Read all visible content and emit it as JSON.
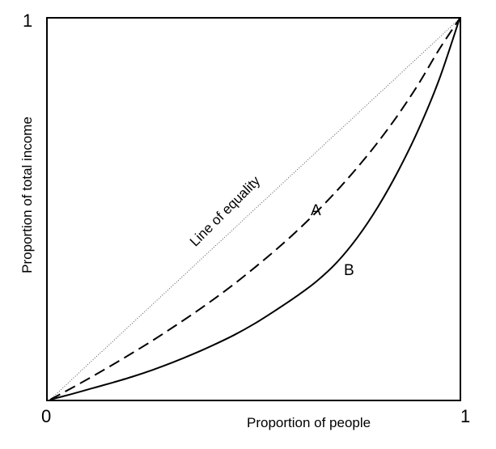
{
  "chart_data": {
    "type": "line",
    "title": "",
    "xlabel": "Proportion of people",
    "ylabel": "Proportion of total income",
    "xlim": [
      0,
      1
    ],
    "ylim": [
      0,
      1
    ],
    "x_ticks": [
      "0",
      "1"
    ],
    "y_ticks": [
      "1"
    ],
    "grid": false,
    "legend": "none",
    "annotations": [
      {
        "text": "Line of equality"
      }
    ],
    "series": [
      {
        "label": "",
        "style": "dotted",
        "color": "#555555",
        "x": [
          0,
          1
        ],
        "y": [
          0,
          1
        ]
      },
      {
        "label": "A",
        "style": "dashed",
        "color": "#000000",
        "x": [
          0,
          0.05,
          0.1,
          0.15,
          0.2,
          0.25,
          0.3,
          0.35,
          0.4,
          0.45,
          0.5,
          0.55,
          0.6,
          0.65,
          0.7,
          0.75,
          0.8,
          0.85,
          0.9,
          0.95,
          1
        ],
        "y": [
          0,
          0.029,
          0.059,
          0.09,
          0.122,
          0.155,
          0.19,
          0.226,
          0.264,
          0.304,
          0.347,
          0.392,
          0.44,
          0.492,
          0.548,
          0.609,
          0.675,
          0.748,
          0.829,
          0.919,
          1
        ]
      },
      {
        "label": "B",
        "style": "solid",
        "color": "#000000",
        "x": [
          0,
          0.05,
          0.1,
          0.15,
          0.2,
          0.25,
          0.3,
          0.35,
          0.4,
          0.45,
          0.5,
          0.55,
          0.6,
          0.65,
          0.7,
          0.75,
          0.8,
          0.85,
          0.9,
          0.95,
          1
        ],
        "y": [
          0,
          0.014,
          0.029,
          0.044,
          0.06,
          0.078,
          0.098,
          0.12,
          0.144,
          0.17,
          0.2,
          0.234,
          0.27,
          0.31,
          0.36,
          0.425,
          0.505,
          0.6,
          0.71,
          0.84,
          1
        ]
      }
    ]
  }
}
